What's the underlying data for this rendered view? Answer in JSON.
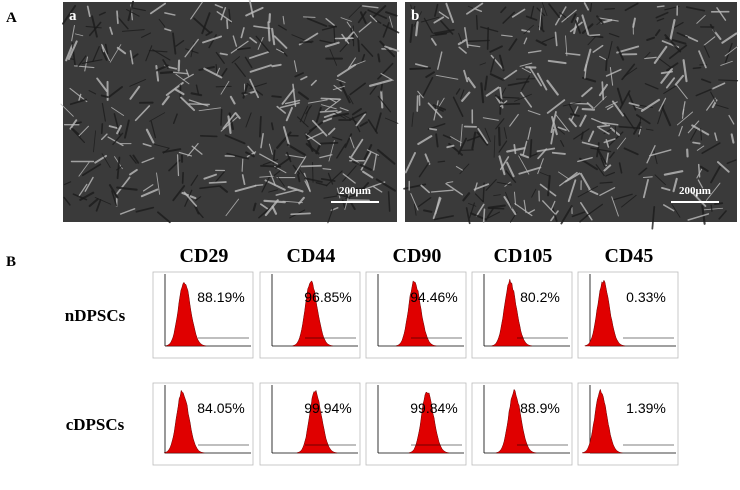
{
  "panel_a": {
    "label": "A",
    "images": [
      {
        "label": "a",
        "scale_bar": "200μm"
      },
      {
        "label": "b",
        "scale_bar": "200μm"
      }
    ]
  },
  "panel_b": {
    "label": "B",
    "markers": [
      "CD29",
      "CD44",
      "CD90",
      "CD105",
      "CD45"
    ],
    "rows": [
      {
        "name": "nDPSCs",
        "percentages": [
          "88.19%",
          "96.85%",
          "94.46%",
          "80.2%",
          "0.33%"
        ]
      },
      {
        "name": "cDPSCs",
        "percentages": [
          "84.05%",
          "99.94%",
          "99.84%",
          "88.9%",
          "1.39%"
        ]
      }
    ]
  }
}
